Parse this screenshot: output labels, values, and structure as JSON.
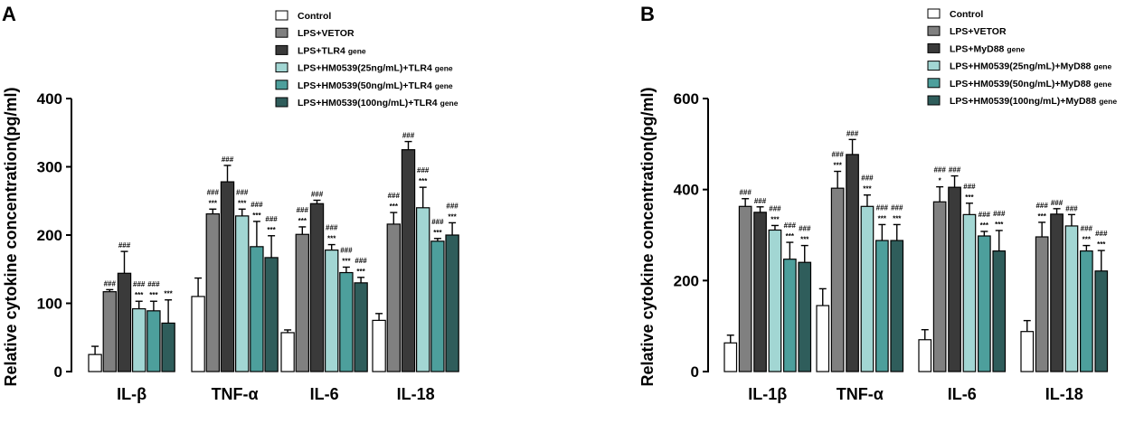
{
  "chart_data": [
    {
      "type": "bar",
      "panel": "A",
      "ylabel": "Relative cytokine concentration(pg/ml)",
      "ylim": [
        0,
        400
      ],
      "yticks": [
        "0",
        "100",
        "200",
        "300",
        "400"
      ],
      "categories": [
        "IL-β",
        "TNF-α",
        "IL-6",
        "IL-18"
      ],
      "series": [
        {
          "name": "Control",
          "legend": "Control",
          "color": "#ffffff",
          "values": [
            25,
            110,
            57,
            75
          ],
          "errors": [
            12,
            27,
            4,
            10
          ]
        },
        {
          "name": "LPS+VETOR",
          "legend": "LPS+VETOR",
          "color": "#808080",
          "values": [
            117,
            231,
            201,
            216
          ],
          "errors": [
            3,
            7,
            11,
            17
          ]
        },
        {
          "name": "LPS+TLR4 gene",
          "legend": "LPS+TLR4",
          "legend_sub": "gene",
          "color": "#3a3a3a",
          "values": [
            144,
            278,
            246,
            325
          ],
          "errors": [
            32,
            24,
            5,
            12
          ]
        },
        {
          "name": "LPS+HM0539(25ng/mL)+TLR4 gene",
          "legend": "LPS+HM0539(25ng/mL)+TLR4",
          "legend_sub": "gene",
          "color": "#a2d6d3",
          "values": [
            92,
            228,
            178,
            240
          ],
          "errors": [
            11,
            10,
            8,
            30
          ]
        },
        {
          "name": "LPS+HM0539(50ng/mL)+TLR4 gene",
          "legend": "LPS+HM0539(50ng/mL)+TLR4",
          "legend_sub": "gene",
          "color": "#4d9f9c",
          "values": [
            89,
            183,
            145,
            191
          ],
          "errors": [
            14,
            37,
            8,
            4
          ]
        },
        {
          "name": "LPS+HM0539(100ng/mL)+TLR4 gene",
          "legend": "LPS+HM0539(100ng/mL)+TLR4",
          "legend_sub": "gene",
          "color": "#2f5d5b",
          "values": [
            71,
            167,
            130,
            200
          ],
          "errors": [
            34,
            32,
            8,
            18
          ]
        }
      ],
      "significance": [
        [
          "",
          "",
          "",
          ""
        ],
        [
          "###",
          "###|***",
          "###|***",
          "###|***"
        ],
        [
          "###",
          "###",
          "###",
          "###"
        ],
        [
          "###|***",
          "###|***",
          "###|***",
          "###|***"
        ],
        [
          "###|***",
          "###|***",
          "###|***",
          "###|***"
        ],
        [
          "***",
          "###|***",
          "###|***",
          "###|***"
        ]
      ]
    },
    {
      "type": "bar",
      "panel": "B",
      "ylabel": "Relative cytokine concentration(pg/ml)",
      "ylim": [
        0,
        600
      ],
      "yticks": [
        "0",
        "200",
        "400",
        "600"
      ],
      "categories": [
        "IL-1β",
        "TNF-α",
        "IL-6",
        "IL-18"
      ],
      "series": [
        {
          "name": "Control",
          "legend": "Control",
          "color": "#ffffff",
          "values": [
            63,
            145,
            70,
            88
          ],
          "errors": [
            17,
            37,
            22,
            24
          ]
        },
        {
          "name": "LPS+VETOR",
          "legend": "LPS+VETOR",
          "color": "#808080",
          "values": [
            363,
            403,
            373,
            296
          ],
          "errors": [
            17,
            37,
            33,
            32
          ]
        },
        {
          "name": "LPS+MyD88 gene",
          "legend": "LPS+MyD88",
          "legend_sub": "gene",
          "color": "#3a3a3a",
          "values": [
            350,
            477,
            405,
            346
          ],
          "errors": [
            12,
            33,
            25,
            12
          ]
        },
        {
          "name": "LPS+HM0539(25ng/mL)+MyD88 gene",
          "legend": "LPS+HM0539(25ng/mL)+MyD88",
          "legend_sub": "gene",
          "color": "#a2d6d3",
          "values": [
            311,
            363,
            345,
            320
          ],
          "errors": [
            10,
            25,
            25,
            25
          ]
        },
        {
          "name": "LPS+HM0539(50ng/mL)+MyD88 gene",
          "legend": "LPS+HM0539(50ng/mL)+MyD88",
          "legend_sub": "gene",
          "color": "#4d9f9c",
          "values": [
            247,
            288,
            298,
            265
          ],
          "errors": [
            37,
            35,
            10,
            12
          ]
        },
        {
          "name": "LPS+HM0539(100ng/mL)+MyD88 gene",
          "legend": "LPS+HM0539(100ng/mL)+MyD88",
          "legend_sub": "gene",
          "color": "#2f5d5b",
          "values": [
            240,
            288,
            265,
            221
          ],
          "errors": [
            37,
            35,
            45,
            45
          ]
        }
      ],
      "significance": [
        [
          "",
          "",
          "",
          ""
        ],
        [
          "###",
          "###|***",
          "###|*",
          "###|***"
        ],
        [
          "###",
          "###",
          "###",
          "###"
        ],
        [
          "###|***",
          "###|***",
          "###|***",
          "###"
        ],
        [
          "###|***",
          "###|***",
          "###|***",
          "###|***"
        ],
        [
          "###|***",
          "###|***",
          "###|***",
          "###|***"
        ]
      ]
    }
  ]
}
